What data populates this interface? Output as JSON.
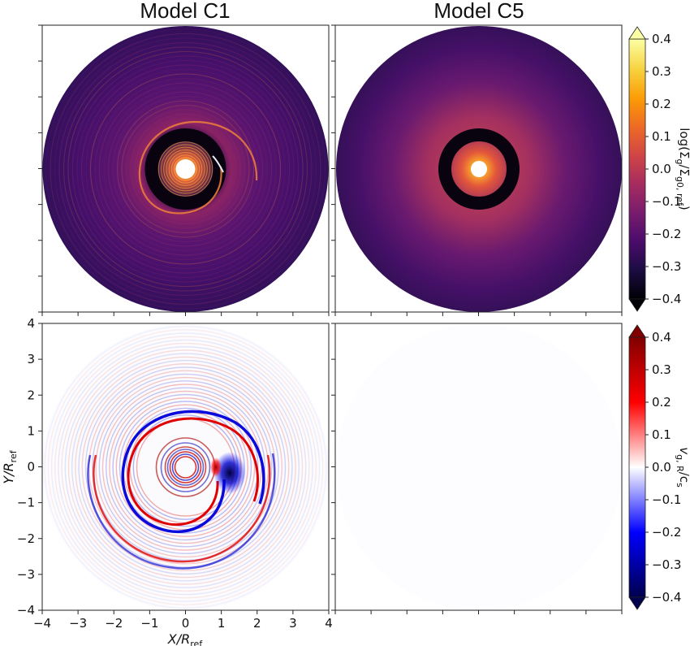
{
  "chart_data": {
    "type": "heatmap",
    "panels": [
      {
        "id": "c1-density",
        "title": "Model C1",
        "quantity": "density",
        "features": [
          "inner-hot-core",
          "dark-gap-ring",
          "spiral-arm",
          "fine-rings"
        ]
      },
      {
        "id": "c5-density",
        "title": "Model C5",
        "quantity": "density",
        "features": [
          "inner-hot-core",
          "dark-gap-ring",
          "smooth-halo"
        ]
      },
      {
        "id": "c1-velocity",
        "title": "",
        "quantity": "velocity",
        "features": [
          "spiral-arm",
          "alternating-rings"
        ]
      },
      {
        "id": "c5-velocity",
        "title": "",
        "quantity": "velocity",
        "features": [
          "uniform-zero"
        ]
      }
    ],
    "x_axis": {
      "label_main": "X/R",
      "label_sub": "ref",
      "range": [
        -4,
        4
      ],
      "ticks": [
        "−4",
        "−3",
        "−2",
        "−1",
        "0",
        "1",
        "2",
        "3",
        "4"
      ]
    },
    "y_axis": {
      "label_main": "Y/R",
      "label_sub": "ref",
      "range": [
        -4,
        4
      ],
      "ticks": [
        "−4",
        "−3",
        "−2",
        "−1",
        "0",
        "1",
        "2",
        "3",
        "4"
      ]
    },
    "colorbars": [
      {
        "id": "density",
        "label_a": "log(Σ",
        "label_b": "g",
        "label_c": "/Σ",
        "label_d": "g0, ref",
        "label_e": ")",
        "range": [
          -0.4,
          0.4
        ],
        "ticks": [
          "0.4",
          "0.3",
          "0.2",
          "0.1",
          "0.0",
          "−0.1",
          "−0.2",
          "−0.3",
          "−0.4"
        ],
        "colormap": "inferno",
        "extend": "both"
      },
      {
        "id": "velocity",
        "label_a": "v",
        "label_b": "g, R",
        "label_c": "/c",
        "label_d": "s",
        "range": [
          -0.4,
          0.4
        ],
        "ticks": [
          "0.4",
          "0.3",
          "0.2",
          "0.1",
          "0.0",
          "−0.1",
          "−0.2",
          "−0.3",
          "−0.4"
        ],
        "colormap": "seismic",
        "extend": "both"
      }
    ],
    "colors": {
      "inferno": [
        "#000004",
        "#1b0c41",
        "#4a0c6b",
        "#781c6d",
        "#a52c60",
        "#cf4446",
        "#ed6925",
        "#fb9b06",
        "#f7d13d",
        "#fcffa4"
      ],
      "seismic": [
        "#00004c",
        "#0000ff",
        "#ffffff",
        "#ff0000",
        "#800000"
      ],
      "disk_base": "#3a0e5a",
      "gap": "#08030f"
    }
  }
}
